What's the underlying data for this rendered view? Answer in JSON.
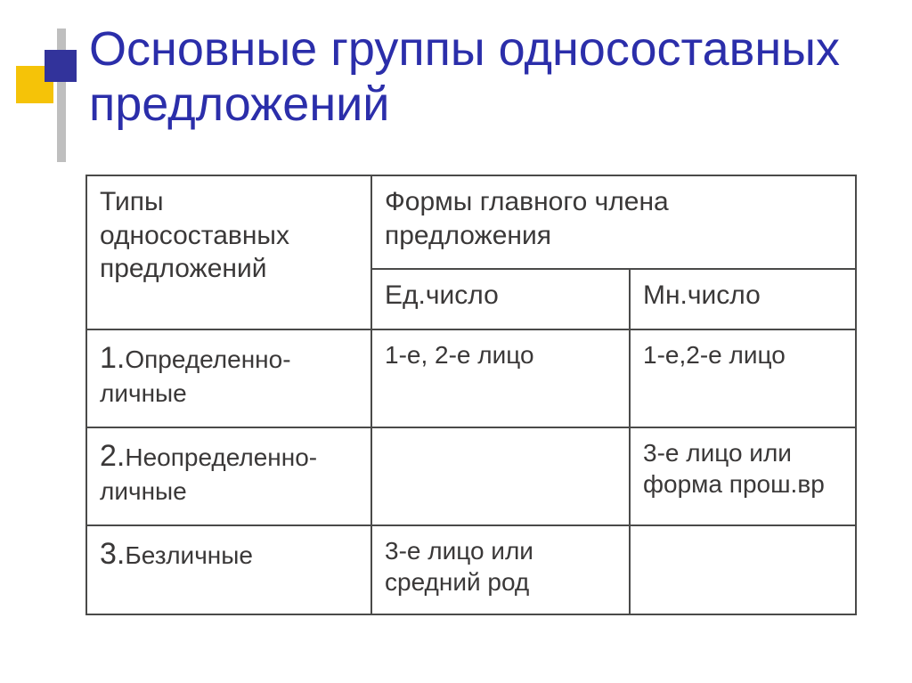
{
  "colors": {
    "title": "#2b2eaa",
    "text": "#3a3838",
    "table_border": "#4a4a49",
    "decor_yellow": "#f5c308",
    "decor_blue": "#32339b",
    "decor_gray": "#bfbfbf",
    "background": "#ffffff"
  },
  "title": "Основные группы односоставных предложений",
  "table": {
    "header": {
      "col1": "Типы односоставных предложений",
      "col2_merged": "Формы главного члена предложения",
      "col2_sub1": "Ед.число",
      "col2_sub2": "Мн.число"
    },
    "rows": [
      {
        "num": "1.",
        "label": "Определенно-личные",
        "singular": "1-е, 2-е лицо",
        "plural": "1-е,2-е лицо"
      },
      {
        "num": "2.",
        "label": "Неопределенно-личные",
        "singular": "",
        "plural": "3-е лицо или форма прош.вр"
      },
      {
        "num": "3.",
        "label": "Безличные",
        "singular": "3-е лицо или средний род",
        "plural": ""
      }
    ]
  }
}
